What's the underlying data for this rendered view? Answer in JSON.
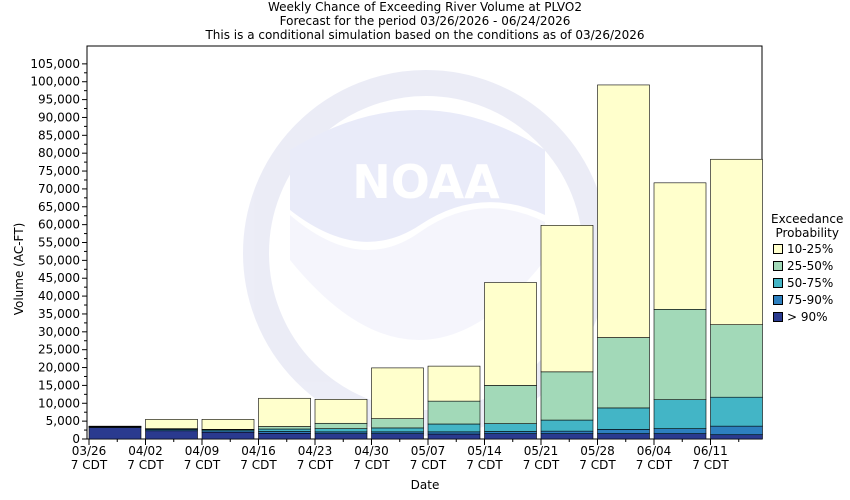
{
  "chart_data": {
    "type": "bar",
    "stacked": true,
    "title": "Weekly Chance of Exceeding River Volume at PLVO2",
    "subtitle": "Forecast for the period 03/26/2026 - 06/24/2026",
    "subtitle2": "This is a conditional simulation based on the conditions as of 03/26/2026",
    "xlabel": "Date",
    "ylabel": "Volume (AC-FT)",
    "ylim": [
      0,
      110000
    ],
    "ytick_step": 5000,
    "yticks": [
      "0",
      "5,000",
      "10,000",
      "15,000",
      "20,000",
      "25,000",
      "30,000",
      "35,000",
      "40,000",
      "45,000",
      "50,000",
      "55,000",
      "60,000",
      "65,000",
      "70,000",
      "75,000",
      "80,000",
      "85,000",
      "90,000",
      "95,000",
      "100,000",
      "105,000"
    ],
    "grid": false,
    "xticks": [
      {
        "line1": "03/26",
        "line2": "7 CDT"
      },
      {
        "line1": "04/02",
        "line2": "7 CDT"
      },
      {
        "line1": "04/09",
        "line2": "7 CDT"
      },
      {
        "line1": "04/16",
        "line2": "7 CDT"
      },
      {
        "line1": "04/23",
        "line2": "7 CDT"
      },
      {
        "line1": "04/30",
        "line2": "7 CDT"
      },
      {
        "line1": "05/07",
        "line2": "7 CDT"
      },
      {
        "line1": "05/14",
        "line2": "7 CDT"
      },
      {
        "line1": "05/21",
        "line2": "7 CDT"
      },
      {
        "line1": "05/28",
        "line2": "7 CDT"
      },
      {
        "line1": "06/04",
        "line2": "7 CDT"
      },
      {
        "line1": "06/11",
        "line2": "7 CDT"
      }
    ],
    "legend_title_line1": "Exceedance",
    "legend_title_line2": "Probability",
    "legend_position": "right",
    "series": [
      {
        "name": "> 90%",
        "color": "#2a3a8f",
        "top": [
          3200,
          2300,
          1900,
          1600,
          1500,
          1500,
          1400,
          1500,
          1500,
          1500,
          1500,
          1200
        ]
      },
      {
        "name": "75-90%",
        "color": "#2d7fbf",
        "top": [
          3400,
          2700,
          2300,
          2100,
          2000,
          2000,
          2000,
          2100,
          2200,
          2700,
          2900,
          3600
        ]
      },
      {
        "name": "50-75%",
        "color": "#43b5c6",
        "top": [
          3500,
          2800,
          2600,
          2800,
          2900,
          3100,
          4200,
          4300,
          5300,
          8700,
          11000,
          11700
        ]
      },
      {
        "name": "25-50%",
        "color": "#a2d9b8",
        "top": [
          3600,
          2900,
          2700,
          3500,
          4400,
          5700,
          10600,
          15000,
          18800,
          28400,
          36300,
          32000
        ]
      },
      {
        "name": "10-25%",
        "color": "#ffffcc",
        "top": [
          3600,
          5500,
          5500,
          11400,
          11100,
          19900,
          20400,
          43800,
          59800,
          99100,
          71700,
          78300
        ]
      }
    ],
    "legend_order": [
      "10-25%",
      "25-50%",
      "50-75%",
      "75-90%",
      "> 90%"
    ]
  },
  "watermark": "NOAA"
}
